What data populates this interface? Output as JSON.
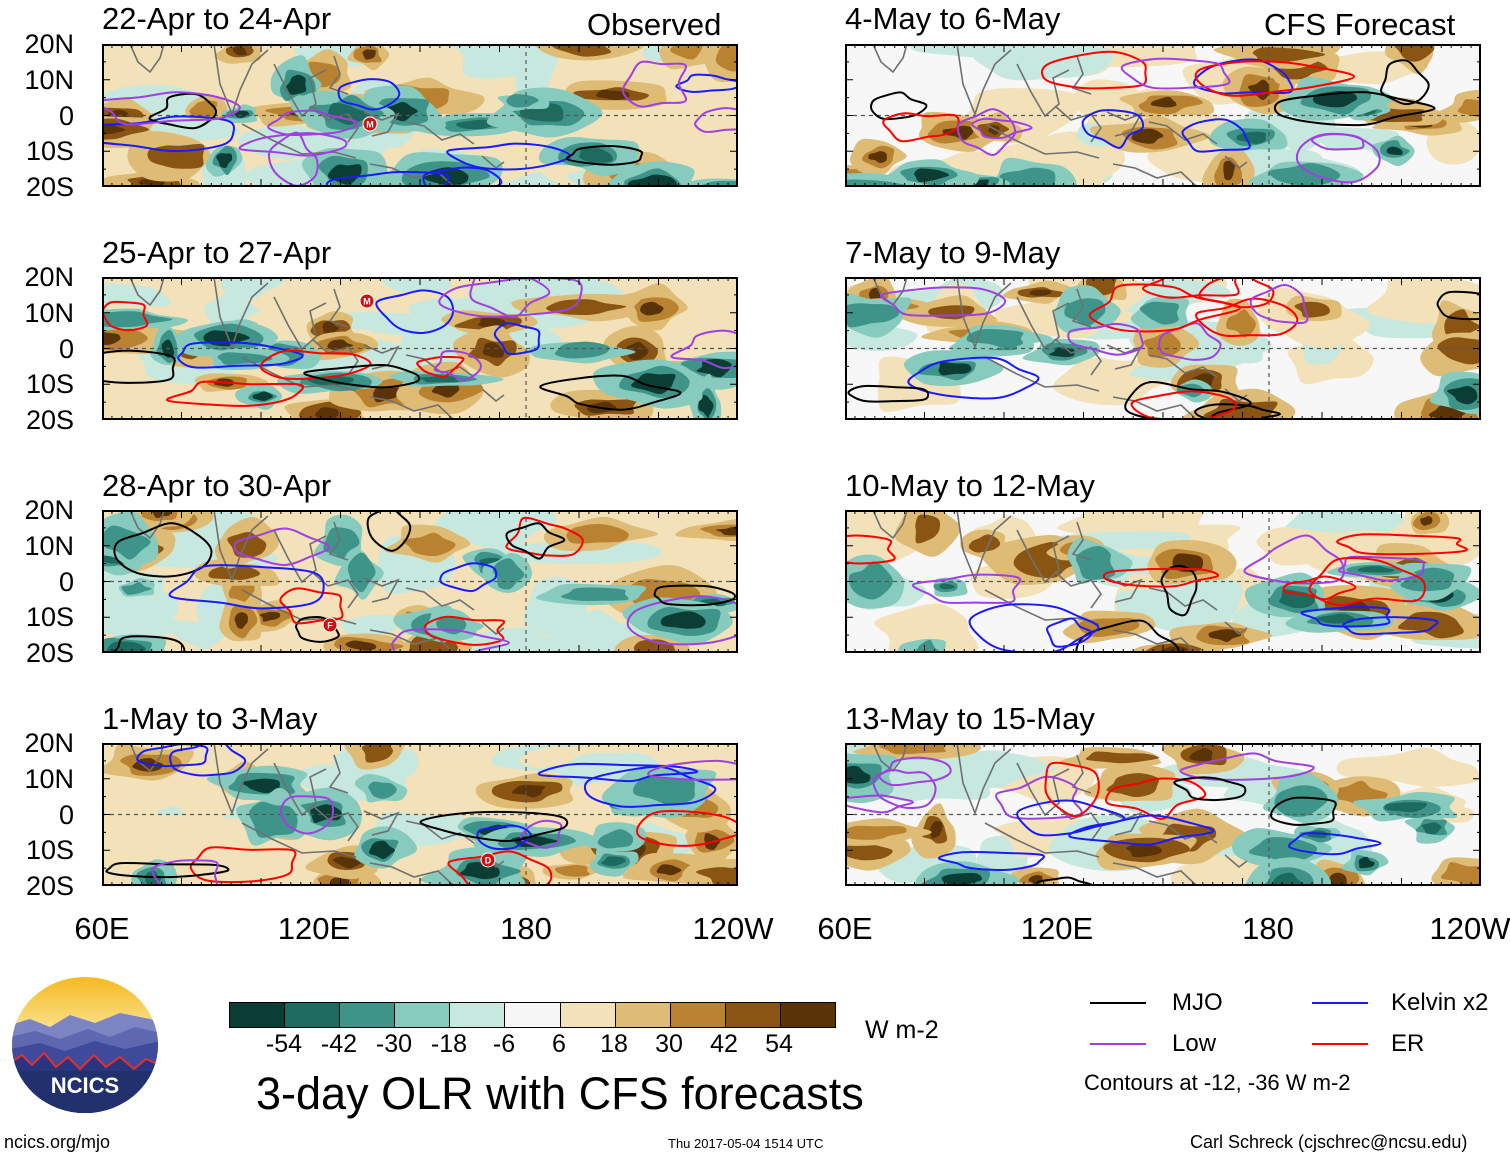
{
  "header": {
    "observed_label": "Observed",
    "forecast_label": "CFS Forecast"
  },
  "panels": [
    {
      "id": "obs-1",
      "column": "observed",
      "title": "22-Apr to 24-Apr"
    },
    {
      "id": "obs-2",
      "column": "observed",
      "title": "25-Apr to 27-Apr"
    },
    {
      "id": "obs-3",
      "column": "observed",
      "title": "28-Apr to 30-Apr"
    },
    {
      "id": "obs-4",
      "column": "observed",
      "title": "1-May to 3-May"
    },
    {
      "id": "fc-1",
      "column": "forecast",
      "title": "4-May to 6-May"
    },
    {
      "id": "fc-2",
      "column": "forecast",
      "title": "7-May to 9-May"
    },
    {
      "id": "fc-3",
      "column": "forecast",
      "title": "10-May to 12-May"
    },
    {
      "id": "fc-4",
      "column": "forecast",
      "title": "13-May to 15-May"
    }
  ],
  "axes": {
    "lat_labels": [
      "20N",
      "10N",
      "0",
      "10S",
      "20S"
    ],
    "lon_labels": [
      "60E",
      "120E",
      "180",
      "120W"
    ]
  },
  "phase_markers": [
    {
      "panel": "obs-1",
      "label": "M"
    },
    {
      "panel": "obs-2",
      "label": "M"
    },
    {
      "panel": "obs-3",
      "label": "F"
    },
    {
      "panel": "obs-4",
      "label": "D"
    }
  ],
  "colorbar": {
    "ticks": [
      "-54",
      "-42",
      "-30",
      "-18",
      "-6",
      "6",
      "18",
      "30",
      "42",
      "54"
    ],
    "units": "W m-2",
    "colors": [
      "#0b3d35",
      "#1c6b5e",
      "#3e9488",
      "#86cbbd",
      "#c6e8df",
      "#f7f7f7",
      "#f3e2b9",
      "#dfbc75",
      "#b98230",
      "#8a5413",
      "#5a3407"
    ]
  },
  "legend": {
    "items": [
      {
        "label": "MJO",
        "color": "#000000"
      },
      {
        "label": "Kelvin x2",
        "color": "#1a1aff"
      },
      {
        "label": "Low",
        "color": "#a040e0"
      },
      {
        "label": "ER",
        "color": "#ff0000"
      }
    ],
    "note": "Contours at -12, -36 W m-2"
  },
  "footer": {
    "main_title": "3-day OLR with CFS forecasts",
    "website": "ncics.org/mjo",
    "timestamp": "Thu 2017-05-04 1514 UTC",
    "author": "Carl Schreck (cjschrec@ncsu.edu)",
    "logo_text": "NCICS"
  }
}
